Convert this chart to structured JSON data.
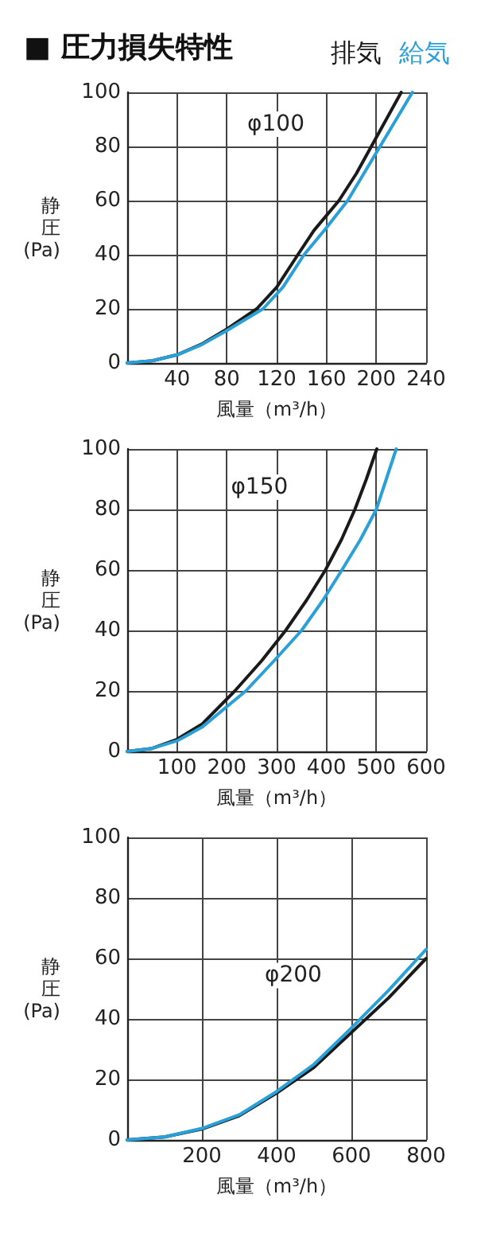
{
  "chart_data": [
    {
      "type": "line",
      "title": "■ 圧力損失特性",
      "xlabel": "風量（m³/h）",
      "ylabel": "静圧(Pa)",
      "legend": "top right",
      "grid": true,
      "marker": "none",
      "xlim": [
        0,
        240
      ],
      "xticks": [
        40,
        80,
        120,
        160,
        200,
        240
      ],
      "ylim": [
        0,
        100
      ],
      "yticks": [
        0,
        20,
        40,
        60,
        80,
        100
      ],
      "annotations": [
        "φ100"
      ],
      "series": [
        {
          "name": "排気",
          "color": "#1a1a1a",
          "x": [
            0,
            20,
            40,
            60,
            80,
            104,
            120,
            137,
            150,
            170,
            184,
            196,
            208,
            220
          ],
          "values": [
            0,
            0.8,
            3,
            7,
            12.5,
            20,
            28,
            40,
            49,
            60,
            70,
            80,
            90,
            100
          ]
        },
        {
          "name": "給気",
          "color": "#2aa0d8",
          "x": [
            0,
            20,
            40,
            60,
            80,
            109,
            125,
            142,
            160,
            177,
            190,
            203,
            216,
            229
          ],
          "values": [
            0,
            0.8,
            3,
            6.8,
            12,
            20,
            28,
            40,
            50,
            60,
            70,
            80,
            90,
            100
          ]
        }
      ]
    },
    {
      "type": "line",
      "xlabel": "風量（m³/h）",
      "ylabel": "静圧(Pa)",
      "grid": true,
      "marker": "none",
      "xlim": [
        0,
        600
      ],
      "xticks": [
        100,
        200,
        300,
        400,
        500,
        600
      ],
      "ylim": [
        0,
        100
      ],
      "yticks": [
        0,
        20,
        40,
        60,
        80,
        100
      ],
      "annotations": [
        "φ150"
      ],
      "series": [
        {
          "color": "#1a1a1a",
          "x": [
            0,
            50,
            100,
            150,
            216,
            270,
            318,
            360,
            398,
            430,
            457,
            480,
            501
          ],
          "values": [
            0,
            1,
            4,
            9,
            20,
            30,
            40,
            50,
            60,
            70,
            80,
            90,
            100
          ]
        },
        {
          "color": "#2aa0d8",
          "x": [
            0,
            50,
            100,
            150,
            238,
            295,
            350,
            393,
            431,
            468,
            500,
            520,
            540
          ],
          "values": [
            0,
            1,
            3.5,
            8,
            20,
            30,
            40,
            50,
            60,
            70,
            80,
            90,
            100
          ]
        }
      ]
    },
    {
      "type": "line",
      "xlabel": "風量（m³/h）",
      "ylabel": "静圧(Pa)",
      "grid": true,
      "marker": "none",
      "xlim": [
        0,
        800
      ],
      "xticks": [
        200,
        400,
        600,
        800
      ],
      "ylim": [
        0,
        100
      ],
      "yticks": [
        0,
        20,
        40,
        60,
        80,
        100
      ],
      "annotations": [
        "φ200"
      ],
      "series": [
        {
          "color": "#1a1a1a",
          "x": [
            0,
            100,
            200,
            300,
            400,
            500,
            600,
            700,
            800
          ],
          "values": [
            0,
            1,
            3.6,
            8,
            15.5,
            24,
            35.5,
            47,
            60
          ]
        },
        {
          "color": "#2aa0d8",
          "x": [
            0,
            100,
            200,
            300,
            400,
            500,
            600,
            700,
            800
          ],
          "values": [
            0,
            1,
            3.8,
            8.3,
            16,
            25,
            37,
            49.5,
            63
          ]
        }
      ]
    }
  ]
}
